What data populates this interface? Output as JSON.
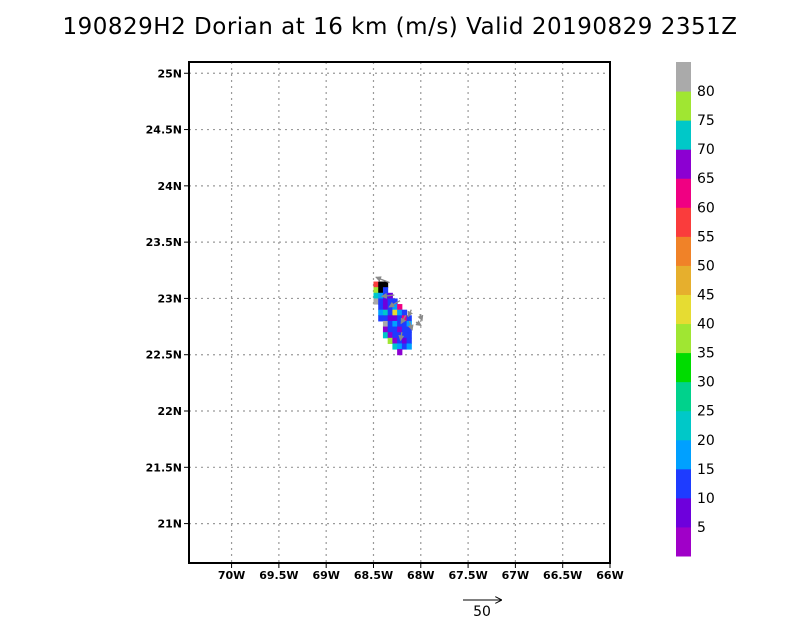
{
  "chart_data": {
    "type": "heatmap",
    "title": "190829H2 Dorian at 16 km (m/s) Valid 20190829  2351Z",
    "lon_range": [
      -70.45,
      -66.0
    ],
    "lat_range": [
      20.65,
      25.1
    ],
    "x_ticks": [
      {
        "value": -70.0,
        "label": "70W"
      },
      {
        "value": -69.5,
        "label": "69.5W"
      },
      {
        "value": -69.0,
        "label": "69W"
      },
      {
        "value": -68.5,
        "label": "68.5W"
      },
      {
        "value": -68.0,
        "label": "68W"
      },
      {
        "value": -67.5,
        "label": "67.5W"
      },
      {
        "value": -67.0,
        "label": "67W"
      },
      {
        "value": -66.5,
        "label": "66.5W"
      },
      {
        "value": -66.0,
        "label": "66W"
      }
    ],
    "y_ticks": [
      {
        "value": 25.0,
        "label": "25N"
      },
      {
        "value": 24.5,
        "label": "24.5N"
      },
      {
        "value": 24.0,
        "label": "24N"
      },
      {
        "value": 23.5,
        "label": "23.5N"
      },
      {
        "value": 23.0,
        "label": "23N"
      },
      {
        "value": 22.5,
        "label": "22.5N"
      },
      {
        "value": 22.0,
        "label": "22N"
      },
      {
        "value": 21.5,
        "label": "21.5N"
      },
      {
        "value": 21.0,
        "label": "21N"
      }
    ],
    "grid": true,
    "colorbar": {
      "levels": [
        0,
        5,
        10,
        15,
        20,
        25,
        30,
        35,
        40,
        45,
        50,
        55,
        60,
        65,
        70,
        75,
        80,
        85
      ],
      "colors": [
        "#a000c8",
        "#6e00dc",
        "#1e3cff",
        "#00a0ff",
        "#00c8c8",
        "#00d28c",
        "#00dc00",
        "#a0e632",
        "#e6dc32",
        "#e6af2d",
        "#f08228",
        "#fa3c3c",
        "#f00082",
        "#8c00d2",
        "#00c8c8",
        "#a0e632",
        "#aaaaaa"
      ],
      "labels": [
        "5",
        "10",
        "15",
        "20",
        "25",
        "30",
        "35",
        "40",
        "45",
        "50",
        "55",
        "60",
        "65",
        "70",
        "75",
        "80"
      ]
    },
    "cells_origin": [
      -68.5,
      23.15
    ],
    "cell_size_deg": 0.05,
    "cells": [
      [
        0,
        0,
        11
      ],
      [
        1,
        0,
        17
      ],
      [
        2,
        0,
        17
      ],
      [
        0,
        1,
        15
      ],
      [
        1,
        1,
        17
      ],
      [
        2,
        1,
        2
      ],
      [
        0,
        2,
        14
      ],
      [
        1,
        2,
        3
      ],
      [
        2,
        2,
        2
      ],
      [
        3,
        2,
        1
      ],
      [
        0,
        3,
        16
      ],
      [
        1,
        3,
        2
      ],
      [
        2,
        3,
        1
      ],
      [
        3,
        3,
        2
      ],
      [
        4,
        3,
        2
      ],
      [
        1,
        4,
        2
      ],
      [
        2,
        4,
        1
      ],
      [
        3,
        4,
        2
      ],
      [
        4,
        4,
        3
      ],
      [
        5,
        4,
        12
      ],
      [
        1,
        5,
        3
      ],
      [
        2,
        5,
        14
      ],
      [
        3,
        5,
        2
      ],
      [
        4,
        5,
        8
      ],
      [
        5,
        5,
        3
      ],
      [
        6,
        5,
        2
      ],
      [
        1,
        6,
        2
      ],
      [
        2,
        6,
        2
      ],
      [
        3,
        6,
        1
      ],
      [
        4,
        6,
        1
      ],
      [
        5,
        6,
        2
      ],
      [
        6,
        6,
        12
      ],
      [
        7,
        6,
        2
      ],
      [
        2,
        7,
        16
      ],
      [
        3,
        7,
        2
      ],
      [
        4,
        7,
        3
      ],
      [
        5,
        7,
        2
      ],
      [
        6,
        7,
        2
      ],
      [
        7,
        7,
        3
      ],
      [
        2,
        8,
        13
      ],
      [
        3,
        8,
        2
      ],
      [
        4,
        8,
        2
      ],
      [
        5,
        8,
        13
      ],
      [
        6,
        8,
        2
      ],
      [
        7,
        8,
        2
      ],
      [
        2,
        9,
        14
      ],
      [
        3,
        9,
        13
      ],
      [
        4,
        9,
        2
      ],
      [
        5,
        9,
        2
      ],
      [
        6,
        9,
        2
      ],
      [
        7,
        9,
        2
      ],
      [
        3,
        10,
        15
      ],
      [
        4,
        10,
        13
      ],
      [
        5,
        10,
        2
      ],
      [
        6,
        10,
        1
      ],
      [
        7,
        10,
        2
      ],
      [
        4,
        11,
        14
      ],
      [
        5,
        11,
        3
      ],
      [
        6,
        11,
        2
      ],
      [
        7,
        11,
        3
      ],
      [
        5,
        12,
        13
      ]
    ],
    "wind_vectors": [
      {
        "lon": -68.33,
        "lat": 23.14,
        "u": -6.0,
        "v": 2.4
      },
      {
        "lon": -68.28,
        "lat": 23.03,
        "u": -5.5,
        "v": -0.6
      },
      {
        "lon": -68.22,
        "lat": 22.98,
        "u": -4.8,
        "v": -2.8
      },
      {
        "lon": -68.16,
        "lat": 22.85,
        "u": -2.0,
        "v": -3.6
      },
      {
        "lon": -68.12,
        "lat": 22.8,
        "u": 1.2,
        "v": -4.0
      },
      {
        "lon": -68.05,
        "lat": 22.79,
        "u": 2.2,
        "v": -1.5
      },
      {
        "lon": -68.1,
        "lat": 22.9,
        "u": -1.4,
        "v": -3.0
      },
      {
        "lon": -68.2,
        "lat": 22.7,
        "u": -0.6,
        "v": -3.6
      },
      {
        "lon": -68.01,
        "lat": 22.86,
        "u": 1.0,
        "v": -2.8
      }
    ],
    "reference_vector": {
      "label": "50",
      "u": 50
    }
  }
}
